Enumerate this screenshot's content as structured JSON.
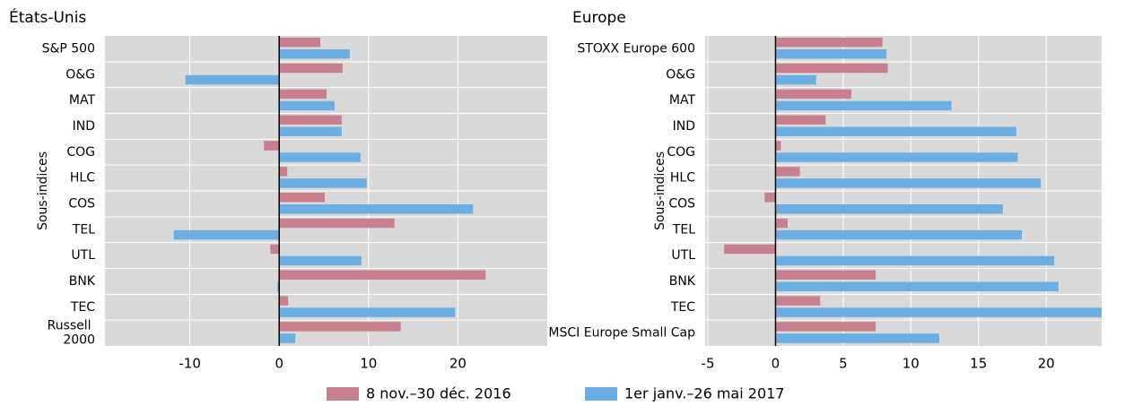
{
  "chart_data": [
    {
      "type": "barh",
      "title": "États-Unis",
      "ylabel": "Sous-indices",
      "categories": [
        "S&P 500",
        "O&G",
        "MAT",
        "IND",
        "COG",
        "HLC",
        "COS",
        "TEL",
        "UTL",
        "BNK",
        "TEC",
        "Russell 2000"
      ],
      "series": [
        {
          "name": "8 nov.–30 déc. 2016",
          "color": "#c8808f",
          "values": [
            4.6,
            7.1,
            5.3,
            7.0,
            -1.7,
            0.9,
            5.1,
            12.9,
            -1.0,
            23.1,
            1.0,
            13.6
          ]
        },
        {
          "name": "1er janv.–26 mai 2017",
          "color": "#6aaee4",
          "values": [
            7.9,
            -10.5,
            6.2,
            7.0,
            9.1,
            9.8,
            21.7,
            -11.8,
            9.2,
            -0.2,
            19.7,
            1.8
          ]
        }
      ],
      "xlim": [
        -19.5,
        30
      ],
      "xticks": [
        -10,
        0,
        10,
        20
      ],
      "grid": true
    },
    {
      "type": "barh",
      "title": "Europe",
      "ylabel": "Sous-indices",
      "categories": [
        "STOXX Europe 600",
        "O&G",
        "MAT",
        "IND",
        "COG",
        "HLC",
        "COS",
        "TEL",
        "UTL",
        "BNK",
        "TEC",
        "MSCI Europe Small Cap"
      ],
      "series": [
        {
          "color": "#c8808f",
          "values": [
            7.9,
            8.3,
            5.6,
            3.7,
            0.4,
            1.8,
            -0.8,
            0.9,
            -3.8,
            7.4,
            3.3,
            7.4
          ]
        },
        {
          "color": "#6aaee4",
          "values": [
            8.2,
            3.0,
            13.0,
            17.8,
            17.9,
            19.6,
            16.8,
            18.2,
            20.6,
            20.9,
            24.1,
            12.1
          ]
        }
      ],
      "xlim": [
        -5.2,
        24.1
      ],
      "xticks": [
        -5,
        0,
        5,
        10,
        15,
        20
      ],
      "grid": true
    }
  ]
}
